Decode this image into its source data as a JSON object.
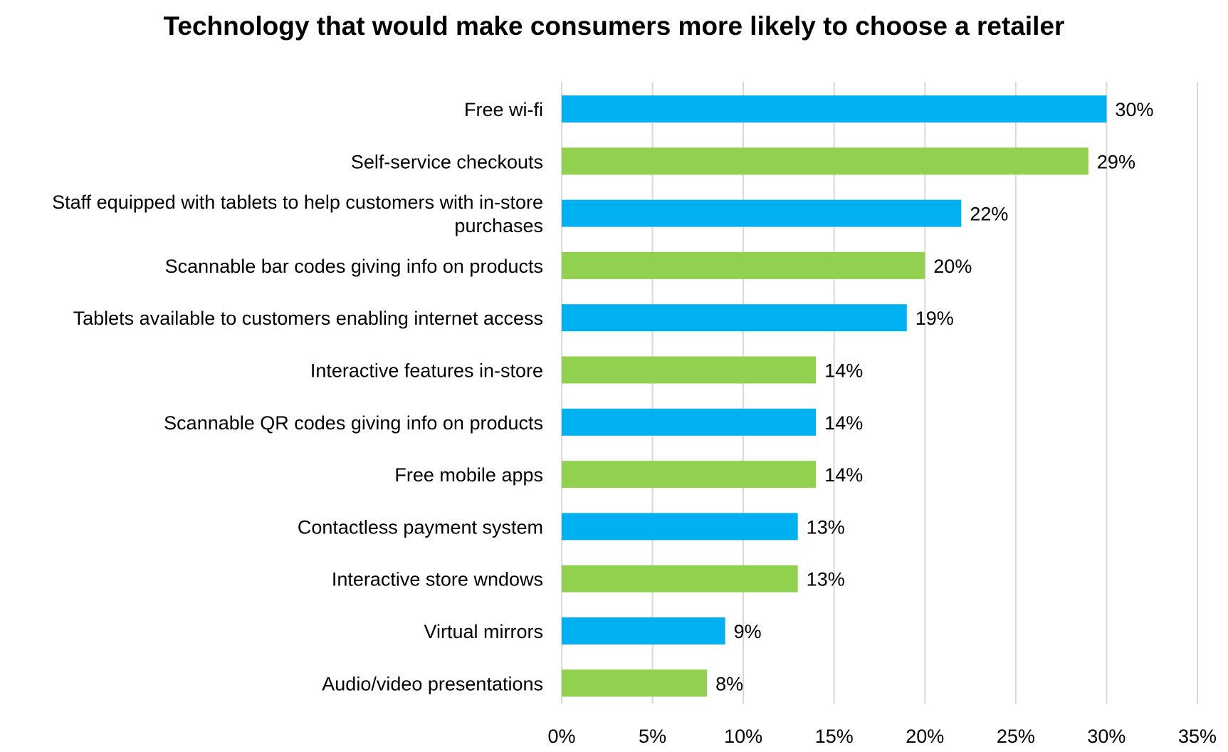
{
  "chart_data": {
    "type": "bar",
    "orientation": "horizontal",
    "title": "Technology that would make consumers more likely to choose a retailer",
    "xlabel": "",
    "ylabel": "",
    "categories": [
      "Free wi-fi",
      "Self-service checkouts",
      "Staff equipped with tablets to help customers with in-store purchases",
      "Scannable bar codes giving info on products",
      "Tablets available to customers enabling internet access",
      "Interactive features in-store",
      "Scannable QR codes giving info on products",
      "Free mobile apps",
      "Contactless payment system",
      "Interactive store wndows",
      "Virtual mirrors",
      "Audio/video presentations"
    ],
    "category_label_lines": [
      [
        "Free wi-fi"
      ],
      [
        "Self-service checkouts"
      ],
      [
        "Staff equipped with tablets to help customers with in-store",
        "purchases"
      ],
      [
        "Scannable bar codes giving info on products"
      ],
      [
        "Tablets available to customers enabling internet access"
      ],
      [
        "Interactive features in-store"
      ],
      [
        "Scannable QR codes giving info on products"
      ],
      [
        "Free mobile apps"
      ],
      [
        "Contactless payment system"
      ],
      [
        "Interactive store wndows"
      ],
      [
        "Virtual mirrors"
      ],
      [
        "Audio/video presentations"
      ]
    ],
    "values": [
      30,
      29,
      22,
      20,
      19,
      14,
      14,
      14,
      13,
      13,
      9,
      8
    ],
    "data_labels": [
      "30%",
      "29%",
      "22%",
      "20%",
      "19%",
      "14%",
      "14%",
      "14%",
      "13%",
      "13%",
      "9%",
      "8%"
    ],
    "xlim": [
      0,
      35
    ],
    "xticks": [
      0,
      5,
      10,
      15,
      20,
      25,
      30,
      35
    ],
    "xtick_labels": [
      "0%",
      "5%",
      "10%",
      "15%",
      "20%",
      "25%",
      "30%",
      "35%"
    ],
    "grid": "vertical",
    "legend": "none",
    "colors": {
      "blue": "#00B0F0",
      "green": "#92D050",
      "grid": "#D9D9D9"
    },
    "bar_color_pattern": [
      "blue",
      "green"
    ]
  }
}
